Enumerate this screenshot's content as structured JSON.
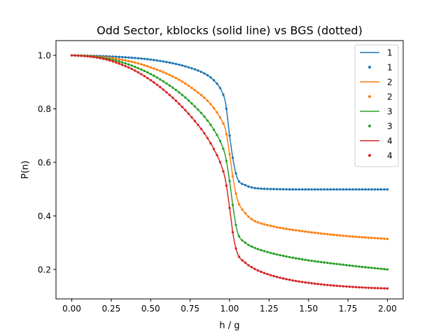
{
  "chart_data": {
    "type": "line",
    "title": "Odd Sector, kblocks (solid line) vs BGS (dotted)",
    "xlabel": "h / g",
    "ylabel": "P(n)",
    "xlim": [
      -0.1,
      2.1
    ],
    "ylim": [
      0.09,
      1.055
    ],
    "xticks": [
      "0.00",
      "0.25",
      "0.50",
      "0.75",
      "1.00",
      "1.25",
      "1.50",
      "1.75",
      "2.00"
    ],
    "yticks": [
      "0.2",
      "0.4",
      "0.6",
      "0.8",
      "1.0"
    ],
    "grid": false,
    "legend_position": "top-right",
    "legend_entries": [
      {
        "label": "1",
        "style": "line",
        "color": "#1f77b4"
      },
      {
        "label": "1",
        "style": "dots",
        "color": "#1f77b4"
      },
      {
        "label": "2",
        "style": "line",
        "color": "#ff7f0e"
      },
      {
        "label": "2",
        "style": "dots",
        "color": "#ff7f0e"
      },
      {
        "label": "3",
        "style": "line",
        "color": "#2ca02c"
      },
      {
        "label": "3",
        "style": "dots",
        "color": "#2ca02c"
      },
      {
        "label": "4",
        "style": "line",
        "color": "#d62728"
      },
      {
        "label": "4",
        "style": "dots",
        "color": "#d62728"
      }
    ],
    "x": [
      0.0,
      0.1,
      0.2,
      0.3,
      0.4,
      0.5,
      0.6,
      0.7,
      0.8,
      0.85,
      0.9,
      0.95,
      0.975,
      1.0,
      1.025,
      1.05,
      1.1,
      1.15,
      1.2,
      1.3,
      1.4,
      1.5,
      1.6,
      1.7,
      1.8,
      1.9,
      2.0
    ],
    "series": [
      {
        "name": "1",
        "color": "#1f77b4",
        "values": [
          1.0,
          0.999,
          0.997,
          0.994,
          0.99,
          0.984,
          0.975,
          0.962,
          0.943,
          0.929,
          0.907,
          0.866,
          0.82,
          0.7,
          0.6,
          0.54,
          0.515,
          0.505,
          0.502,
          0.5,
          0.499,
          0.499,
          0.499,
          0.499,
          0.499,
          0.499,
          0.499
        ]
      },
      {
        "name": "2",
        "color": "#ff7f0e",
        "values": [
          1.0,
          0.998,
          0.993,
          0.985,
          0.973,
          0.955,
          0.932,
          0.902,
          0.861,
          0.836,
          0.803,
          0.757,
          0.72,
          0.63,
          0.53,
          0.46,
          0.41,
          0.384,
          0.372,
          0.358,
          0.348,
          0.34,
          0.333,
          0.327,
          0.322,
          0.318,
          0.314
        ]
      },
      {
        "name": "3",
        "color": "#2ca02c",
        "values": [
          1.0,
          0.997,
          0.99,
          0.977,
          0.957,
          0.93,
          0.895,
          0.852,
          0.797,
          0.764,
          0.722,
          0.666,
          0.62,
          0.53,
          0.42,
          0.34,
          0.3,
          0.283,
          0.272,
          0.256,
          0.244,
          0.234,
          0.226,
          0.219,
          0.212,
          0.206,
          0.2
        ]
      },
      {
        "name": "4",
        "color": "#d62728",
        "values": [
          1.0,
          0.996,
          0.987,
          0.969,
          0.943,
          0.907,
          0.862,
          0.807,
          0.74,
          0.7,
          0.65,
          0.585,
          0.53,
          0.43,
          0.32,
          0.26,
          0.225,
          0.205,
          0.191,
          0.172,
          0.159,
          0.15,
          0.143,
          0.138,
          0.134,
          0.131,
          0.129
        ]
      }
    ]
  }
}
